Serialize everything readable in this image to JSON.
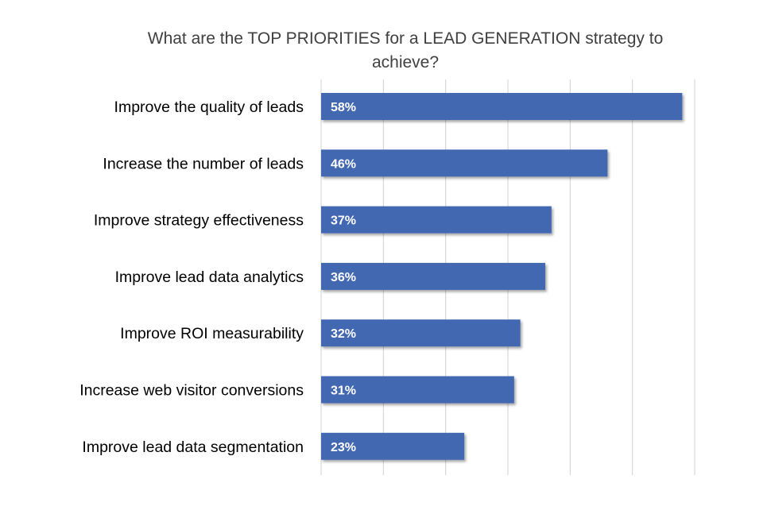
{
  "chart_data": {
    "type": "bar",
    "orientation": "horizontal",
    "title": "What are the TOP PRIORITIES for a LEAD GENERATION strategy to achieve?",
    "categories": [
      "Improve the quality of leads",
      "Increase the number of leads",
      "Improve strategy effectiveness",
      "Improve lead data analytics",
      "Improve ROI measurability",
      "Increase web visitor conversions",
      "Improve lead data segmentation"
    ],
    "values": [
      58,
      46,
      37,
      36,
      32,
      31,
      23
    ],
    "data_labels": [
      "58%",
      "46%",
      "37%",
      "36%",
      "32%",
      "31%",
      "23%"
    ],
    "xlim": [
      0,
      60
    ],
    "grid": true,
    "grid_step": 10,
    "legend": "none",
    "bar_color": "#4267B2",
    "label_color": "#ffffff"
  }
}
